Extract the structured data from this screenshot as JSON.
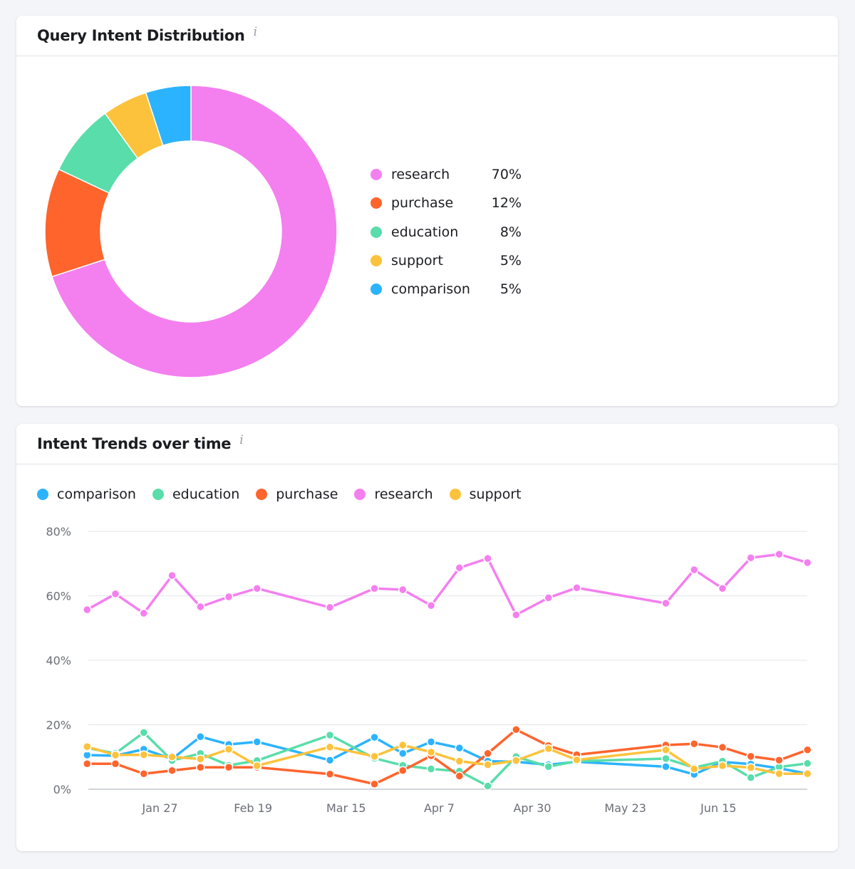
{
  "distribution": {
    "title": "Query Intent Distribution",
    "info_icon": "info-icon",
    "legend": [
      {
        "label": "research",
        "pct": "70%"
      },
      {
        "label": "purchase",
        "pct": "12%"
      },
      {
        "label": "education",
        "pct": "8%"
      },
      {
        "label": "support",
        "pct": "5%"
      },
      {
        "label": "comparison",
        "pct": "5%"
      }
    ]
  },
  "trends": {
    "title": "Intent Trends over time",
    "info_icon": "info-icon",
    "legend": [
      "comparison",
      "education",
      "purchase",
      "research",
      "support"
    ]
  },
  "colors": {
    "research": "#f47fef",
    "purchase": "#ff642d",
    "education": "#59ddaa",
    "support": "#fdc23c",
    "comparison": "#2bb3ff"
  },
  "chart_data": [
    {
      "type": "pie",
      "title": "Query Intent Distribution",
      "donut": true,
      "categories": [
        "research",
        "purchase",
        "education",
        "support",
        "comparison"
      ],
      "values": [
        70,
        12,
        8,
        5,
        5
      ],
      "legend_position": "right"
    },
    {
      "type": "line",
      "title": "Intent Trends over time",
      "x": [
        "Jan 9",
        "Jan 16",
        "Jan 23",
        "Jan 30",
        "Feb 6",
        "Feb 13",
        "Feb 20",
        "Mar 10",
        "Mar 21",
        "Mar 28",
        "Apr 4",
        "Apr 11",
        "Apr 18",
        "Apr 25",
        "May 3",
        "May 10",
        "Jun 1",
        "Jun 8",
        "Jun 15",
        "Jun 22",
        "Jun 29",
        "Jul 6"
      ],
      "x_day_offsets_from_jan27": [
        -18,
        -11,
        -4,
        3,
        10,
        17,
        24,
        42,
        53,
        60,
        67,
        74,
        81,
        88,
        96,
        103,
        125,
        132,
        139,
        146,
        153,
        160
      ],
      "x_ticks": [
        "Jan 27",
        "Feb 19",
        "Mar 15",
        "Apr 7",
        "Apr 30",
        "May 23",
        "Jun 15"
      ],
      "x_tick_day_offsets_from_jan27": [
        0,
        23,
        46,
        69,
        92,
        115,
        138
      ],
      "y_ticks": [
        "0%",
        "20%",
        "40%",
        "60%",
        "80%"
      ],
      "ylim": [
        0,
        80
      ],
      "grid": "horizontal",
      "legend_position": "top-left",
      "series": [
        {
          "name": "comparison",
          "values": [
            10.6,
            10.4,
            12.4,
            9.4,
            16.3,
            13.9,
            14.7,
            9.0,
            16.1,
            11.1,
            14.7,
            12.8,
            8.7,
            8.5,
            7.6,
            8.5,
            7.0,
            4.6,
            8.5,
            7.8,
            6.5,
            4.8
          ]
        },
        {
          "name": "education",
          "values": [
            12.8,
            11.1,
            17.6,
            8.9,
            11.1,
            7.4,
            8.9,
            16.8,
            9.6,
            7.4,
            6.3,
            5.6,
            1.0,
            10.1,
            7.0,
            8.7,
            9.5,
            6.7,
            8.7,
            3.6,
            6.9,
            8.0
          ]
        },
        {
          "name": "purchase",
          "values": [
            7.9,
            7.9,
            4.8,
            5.8,
            6.8,
            6.8,
            6.8,
            4.7,
            1.6,
            5.8,
            10.4,
            4.1,
            11.1,
            18.5,
            13.5,
            10.7,
            13.7,
            14.1,
            13.0,
            10.2,
            9.0,
            12.2
          ]
        },
        {
          "name": "research",
          "values": [
            55.7,
            60.6,
            54.6,
            66.3,
            56.6,
            59.7,
            62.3,
            56.4,
            62.3,
            61.9,
            57.0,
            68.7,
            71.6,
            54.1,
            59.4,
            62.5,
            57.7,
            68.1,
            62.3,
            71.8,
            72.9,
            70.3
          ]
        },
        {
          "name": "support",
          "values": [
            13.2,
            10.6,
            10.7,
            10.0,
            9.4,
            12.4,
            7.3,
            13.1,
            10.2,
            13.7,
            11.5,
            8.7,
            7.6,
            8.9,
            12.6,
            9.1,
            12.2,
            6.3,
            7.3,
            6.7,
            4.8,
            4.8
          ]
        }
      ]
    }
  ]
}
